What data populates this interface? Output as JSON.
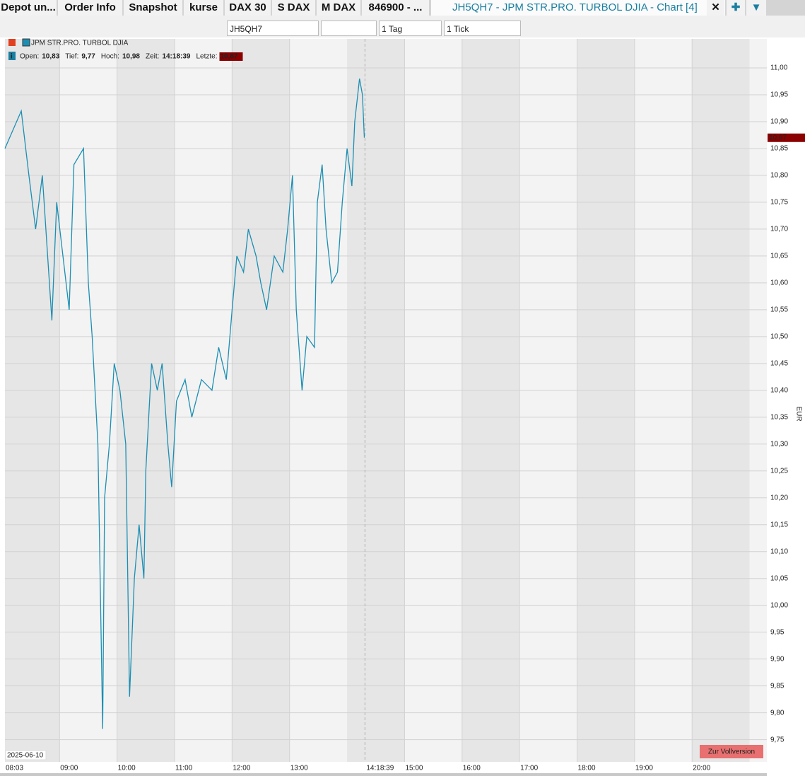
{
  "tabs": [
    "Depot un...",
    "Order Info",
    "Snapshot",
    "kurse",
    "DAX 30",
    "S DAX",
    "M DAX",
    "846900 - ...",
    "JH5QH7 - JPM STR.PRO. TURBOL DJIA - Chart [4]"
  ],
  "toolbar": {
    "symbol": "JH5QH7",
    "period": "1 Tag",
    "interval": "1 Tick"
  },
  "chart_data": {
    "type": "line",
    "title": "JPM STR.PRO. TURBOL DJIA",
    "info": [
      {
        "label": "Open:",
        "value": "10,83"
      },
      {
        "label": "Tief:",
        "value": "9,77"
      },
      {
        "label": "Hoch:",
        "value": "10,98"
      },
      {
        "label": "Zeit:",
        "value": "14:18:39"
      },
      {
        "label": "Letzte:",
        "value": "10,87"
      }
    ],
    "x": [
      "08:03",
      "08:20",
      "08:28",
      "08:35",
      "08:42",
      "08:52",
      "08:57",
      "09:10",
      "09:15",
      "09:25",
      "09:30",
      "09:34",
      "09:40",
      "09:45",
      "09:47",
      "09:52",
      "09:57",
      "10:03",
      "10:09",
      "10:13",
      "10:18",
      "10:23",
      "10:28",
      "10:30",
      "10:36",
      "10:42",
      "10:47",
      "10:53",
      "10:57",
      "11:02",
      "11:11",
      "11:18",
      "11:28",
      "11:39",
      "11:46",
      "11:54",
      "12:00",
      "12:05",
      "12:12",
      "12:17",
      "12:25",
      "12:30",
      "12:36",
      "12:44",
      "12:53",
      "12:58",
      "13:03",
      "13:07",
      "13:13",
      "13:18",
      "13:26",
      "13:29",
      "13:34",
      "13:38",
      "13:44",
      "13:50",
      "13:55",
      "14:00",
      "14:05",
      "14:08",
      "14:13",
      "14:16",
      "14:18"
    ],
    "series": [
      {
        "color": "#1b8fb3",
        "values": [
          10.85,
          10.92,
          10.8,
          10.7,
          10.8,
          10.53,
          10.75,
          10.55,
          10.82,
          10.85,
          10.6,
          10.5,
          10.3,
          9.77,
          10.2,
          10.3,
          10.45,
          10.4,
          10.3,
          9.83,
          10.05,
          10.15,
          10.05,
          10.25,
          10.45,
          10.4,
          10.45,
          10.3,
          10.22,
          10.38,
          10.42,
          10.35,
          10.42,
          10.4,
          10.48,
          10.42,
          10.55,
          10.65,
          10.62,
          10.7,
          10.65,
          10.6,
          10.55,
          10.65,
          10.62,
          10.7,
          10.8,
          10.55,
          10.4,
          10.5,
          10.48,
          10.75,
          10.82,
          10.7,
          10.6,
          10.62,
          10.75,
          10.85,
          10.78,
          10.9,
          10.98,
          10.95,
          10.87
        ]
      }
    ],
    "xlim": [
      "08:03",
      "21:18"
    ],
    "xticks": [
      "08:03",
      "09:00",
      "10:00",
      "11:00",
      "12:00",
      "13:00",
      "15:00",
      "16:00",
      "17:00",
      "18:00",
      "19:00",
      "20:00"
    ],
    "current_time": "14:18:39",
    "ylim": [
      9.71,
      11.05
    ],
    "yticks": [
      {
        "value": 9.75,
        "label": "9,75"
      },
      {
        "value": 9.8,
        "label": "9,80"
      },
      {
        "value": 9.85,
        "label": "9,85"
      },
      {
        "value": 9.9,
        "label": "9,90"
      },
      {
        "value": 9.95,
        "label": "9,95"
      },
      {
        "value": 10,
        "label": "10,00"
      },
      {
        "value": 10.05,
        "label": "10,05"
      },
      {
        "value": 10.1,
        "label": "10,10"
      },
      {
        "value": 10.15,
        "label": "10,15"
      },
      {
        "value": 10.2,
        "label": "10,20"
      },
      {
        "value": 10.25,
        "label": "10,25"
      },
      {
        "value": 10.3,
        "label": "10,30"
      },
      {
        "value": 10.35,
        "label": "10,35"
      },
      {
        "value": 10.4,
        "label": "10,40"
      },
      {
        "value": 10.45,
        "label": "10,45"
      },
      {
        "value": 10.5,
        "label": "10,50"
      },
      {
        "value": 10.55,
        "label": "10,55"
      },
      {
        "value": 10.6,
        "label": "10,60"
      },
      {
        "value": 10.65,
        "label": "10,65"
      },
      {
        "value": 10.7,
        "label": "10,70"
      },
      {
        "value": 10.75,
        "label": "10,75"
      },
      {
        "value": 10.8,
        "label": "10,80"
      },
      {
        "value": 10.85,
        "label": "10,85"
      },
      {
        "value": 10.9,
        "label": "10,90"
      },
      {
        "value": 10.95,
        "label": "10,95"
      },
      {
        "value": 11,
        "label": "11,00"
      }
    ],
    "last_value": {
      "value": 10.87,
      "label": "10,87"
    },
    "y_label": "EUR",
    "date": "2025-06-10",
    "button": "Zur Vollversion",
    "grid": true
  }
}
